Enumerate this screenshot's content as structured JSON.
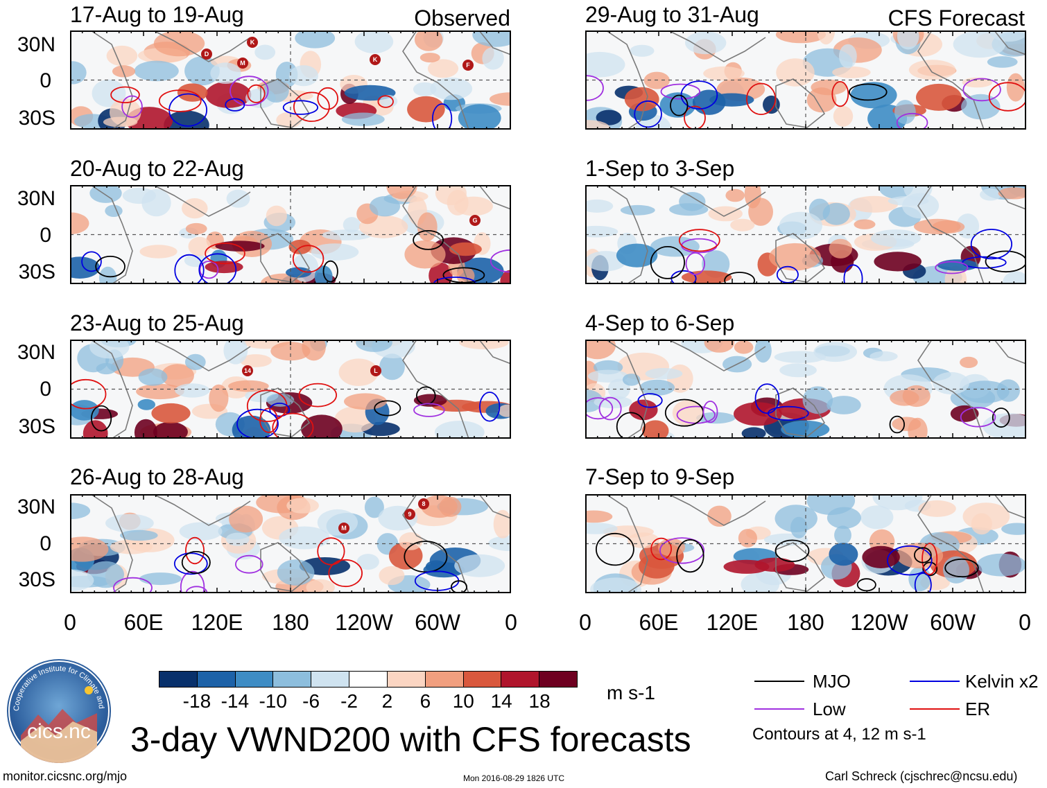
{
  "columns": [
    {
      "tag": "Observed",
      "panels": [
        {
          "title": "17-Aug to 19-Aug",
          "storms": [
            "K",
            "D",
            "M",
            "K",
            "F"
          ]
        },
        {
          "title": "20-Aug to 22-Aug",
          "storms": [
            "G"
          ]
        },
        {
          "title": "23-Aug to 25-Aug",
          "storms": [
            "14",
            "L"
          ]
        },
        {
          "title": "26-Aug to 28-Aug",
          "storms": [
            "8",
            "9",
            "M"
          ]
        }
      ]
    },
    {
      "tag": "CFS Forecast",
      "panels": [
        {
          "title": "29-Aug to 31-Aug",
          "storms": []
        },
        {
          "title": "1-Sep to 3-Sep",
          "storms": []
        },
        {
          "title": "4-Sep to 6-Sep",
          "storms": []
        },
        {
          "title": "7-Sep to 9-Sep",
          "storms": []
        }
      ]
    }
  ],
  "lat_labels": [
    "30N",
    "0",
    "30S"
  ],
  "lon_labels": [
    "0",
    "60E",
    "120E",
    "180",
    "120W",
    "60W",
    "0"
  ],
  "colorbar": {
    "colors": [
      "#08306b",
      "#1d62a8",
      "#3e8cc4",
      "#8dbedd",
      "#cfe3f0",
      "#ffffff",
      "#fbd5c2",
      "#f19f7f",
      "#d9583d",
      "#b0152c",
      "#6e0020"
    ],
    "labels": [
      "-18",
      "-14",
      "-10",
      "-6",
      "-2",
      "2",
      "6",
      "10",
      "14",
      "18"
    ],
    "units": "m s-1"
  },
  "legend": {
    "items": [
      {
        "label": "MJO",
        "color": "#000000"
      },
      {
        "label": "Kelvin x2",
        "color": "#0000e0"
      },
      {
        "label": "Low",
        "color": "#a030e0"
      },
      {
        "label": "ER",
        "color": "#e01010"
      }
    ],
    "note": "Contours at 4, 12 m s-1"
  },
  "title": "3-day VWND200 with CFS forecasts",
  "logo_text": "cics.nc",
  "logo_ring_text": "Cooperative Institute for Climate and Satellites",
  "footer": {
    "left": "monitor.cicsnc.org/mjo",
    "center": "Mon 2016-08-29 1826 UTC",
    "right": "Carl Schreck (cjschrec@ncsu.edu)"
  }
}
